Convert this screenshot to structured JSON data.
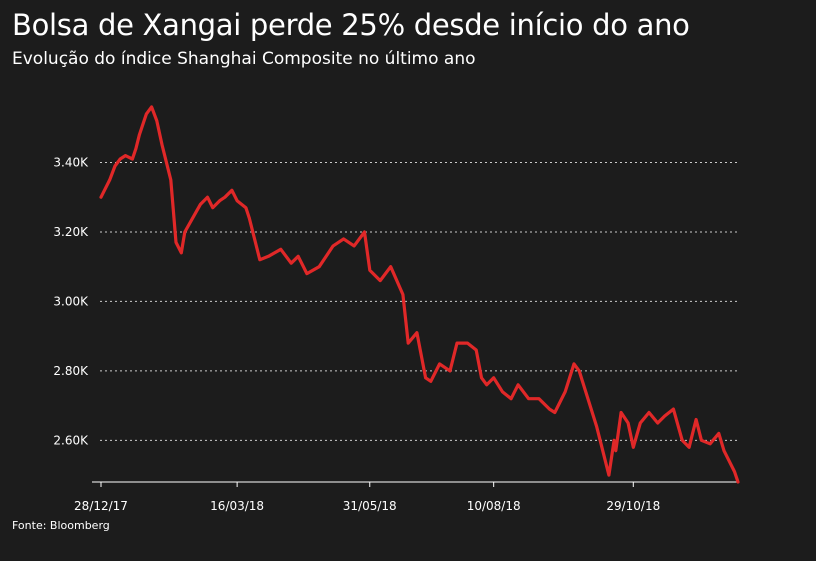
{
  "title": "Bolsa de Xangai perde 25% desde início do ano",
  "subtitle": "Evolução do índice Shanghai Composite no último ano",
  "source": "Fonte: Bloomberg",
  "colors": {
    "background": "#1c1c1c",
    "line": "#e02828",
    "text": "#ffffff",
    "grid": "#cccccc"
  },
  "chart_data": {
    "type": "line",
    "title": "Bolsa de Xangai perde 25% desde início do ano",
    "subtitle": "Evolução do índice Shanghai Composite no último ano",
    "xlabel": "",
    "ylabel": "",
    "grid": true,
    "legend": "none",
    "ylim": [
      2480,
      3580
    ],
    "yticks": [
      2600,
      2800,
      3000,
      3200,
      3400
    ],
    "ytick_labels": [
      "2.60K",
      "2.80K",
      "3.00K",
      "3.20K",
      "3.40K"
    ],
    "xlim": [
      "2017-12-28",
      "2018-12-28"
    ],
    "xticks": [
      "2017-12-28",
      "2018-03-16",
      "2018-05-31",
      "2018-08-10",
      "2018-10-29"
    ],
    "xtick_labels": [
      "28/12/17",
      "16/03/18",
      "31/05/18",
      "10/08/18",
      "29/10/18"
    ],
    "series": [
      {
        "x": [
          "2017-12-28",
          "2017-12-29",
          "2018-01-02",
          "2018-01-05",
          "2018-01-08",
          "2018-01-11",
          "2018-01-15",
          "2018-01-17",
          "2018-01-19",
          "2018-01-23",
          "2018-01-26",
          "2018-01-29",
          "2018-02-01",
          "2018-02-06",
          "2018-02-09",
          "2018-02-12",
          "2018-02-14",
          "2018-02-23",
          "2018-02-27",
          "2018-03-02",
          "2018-03-06",
          "2018-03-09",
          "2018-03-13",
          "2018-03-16",
          "2018-03-21",
          "2018-03-23",
          "2018-03-27",
          "2018-03-29",
          "2018-04-03",
          "2018-04-10",
          "2018-04-16",
          "2018-04-20",
          "2018-04-25",
          "2018-05-02",
          "2018-05-10",
          "2018-05-16",
          "2018-05-22",
          "2018-05-28",
          "2018-05-31",
          "2018-06-06",
          "2018-06-12",
          "2018-06-19",
          "2018-06-22",
          "2018-06-27",
          "2018-07-02",
          "2018-07-05",
          "2018-07-10",
          "2018-07-16",
          "2018-07-20",
          "2018-07-26",
          "2018-07-31",
          "2018-08-03",
          "2018-08-06",
          "2018-08-10",
          "2018-08-15",
          "2018-08-20",
          "2018-08-24",
          "2018-08-30",
          "2018-09-05",
          "2018-09-11",
          "2018-09-14",
          "2018-09-20",
          "2018-09-25",
          "2018-09-28",
          "2018-10-08",
          "2018-10-11",
          "2018-10-15",
          "2018-10-18",
          "2018-10-19",
          "2018-10-22",
          "2018-10-26",
          "2018-10-29",
          "2018-11-02",
          "2018-11-07",
          "2018-11-12",
          "2018-11-16",
          "2018-11-21",
          "2018-11-26",
          "2018-11-30",
          "2018-12-04",
          "2018-12-07",
          "2018-12-12",
          "2018-12-17",
          "2018-12-20",
          "2018-12-26",
          "2018-12-28"
        ],
        "values": [
          3300,
          3310,
          3350,
          3390,
          3410,
          3420,
          3410,
          3440,
          3480,
          3540,
          3560,
          3520,
          3450,
          3350,
          3170,
          3140,
          3200,
          3280,
          3300,
          3270,
          3290,
          3300,
          3320,
          3290,
          3270,
          3240,
          3160,
          3120,
          3130,
          3150,
          3110,
          3130,
          3080,
          3100,
          3160,
          3180,
          3160,
          3200,
          3090,
          3060,
          3100,
          3020,
          2880,
          2910,
          2780,
          2770,
          2820,
          2800,
          2880,
          2880,
          2860,
          2780,
          2760,
          2780,
          2740,
          2720,
          2760,
          2720,
          2720,
          2690,
          2680,
          2740,
          2820,
          2800,
          2640,
          2580,
          2500,
          2600,
          2570,
          2680,
          2650,
          2580,
          2650,
          2680,
          2650,
          2670,
          2690,
          2600,
          2580,
          2660,
          2600,
          2590,
          2620,
          2570,
          2510,
          2480
        ]
      }
    ]
  }
}
